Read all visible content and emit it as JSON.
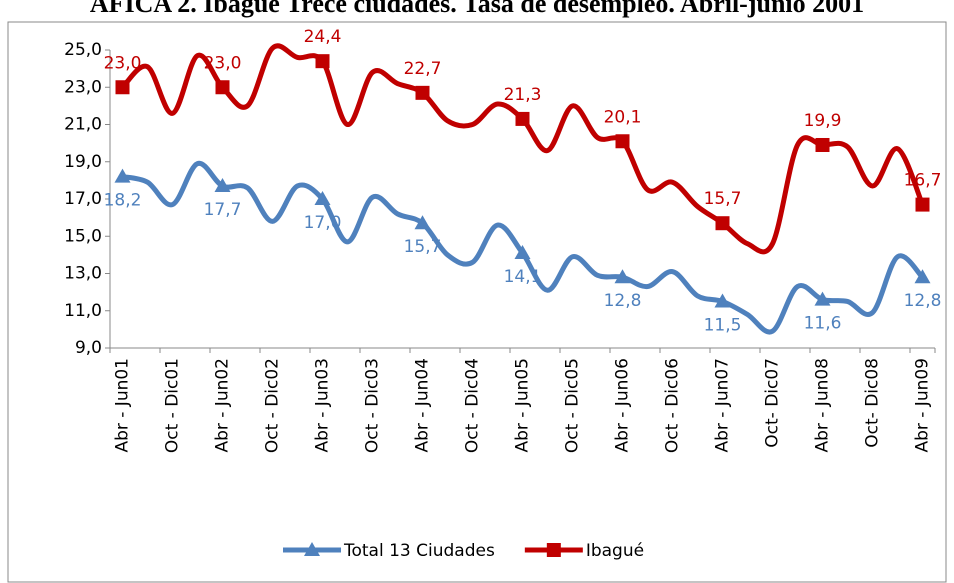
{
  "chart_data": {
    "type": "line",
    "title": "AFICA 2. Ibagué Trece ciudades. Tasa de desempleo. Abril-junio 2001",
    "categories": [
      "Abr - Jun01",
      null,
      "Oct - Dic01",
      null,
      "Abr - Jun02",
      null,
      "Oct - Dic02",
      null,
      "Abr - Jun03",
      null,
      "Oct - Dic03",
      null,
      "Abr - Jun04",
      null,
      "Oct - Dic04",
      null,
      "Abr - Jun05",
      null,
      "Oct - Dic05",
      null,
      "Abr - Jun06",
      null,
      "Oct - Dic06",
      null,
      "Abr - Jun07",
      null,
      "Oct- Dic07",
      null,
      "Abr - Jun08",
      null,
      "Oct- Dic08",
      null,
      "Abr - Jun09"
    ],
    "series": [
      {
        "name": "Total 13 Ciudades",
        "color": "#4f81bd",
        "marker": "triangle",
        "values": [
          18.2,
          17.9,
          16.7,
          18.9,
          17.7,
          17.6,
          15.8,
          17.7,
          17.0,
          14.7,
          17.1,
          16.2,
          15.7,
          14.0,
          13.6,
          15.6,
          14.1,
          12.1,
          13.9,
          12.9,
          12.8,
          12.3,
          13.1,
          11.8,
          11.5,
          10.8,
          9.9,
          12.3,
          11.6,
          11.5,
          10.9,
          13.9,
          12.8
        ],
        "value_labels": [
          "18,2",
          null,
          null,
          null,
          "17,7",
          null,
          null,
          null,
          "17,0",
          null,
          null,
          null,
          "15,7",
          null,
          null,
          null,
          "14,1",
          null,
          null,
          null,
          "12,8",
          null,
          null,
          null,
          "11,5",
          null,
          null,
          null,
          "11,6",
          null,
          null,
          null,
          "12,8"
        ]
      },
      {
        "name": "Ibagué",
        "color": "#c00000",
        "marker": "square",
        "values": [
          23.0,
          24.1,
          21.6,
          24.7,
          23.0,
          22.0,
          25.1,
          24.6,
          24.4,
          21.0,
          23.8,
          23.2,
          22.7,
          21.2,
          21.0,
          22.1,
          21.3,
          19.6,
          22.0,
          20.3,
          20.1,
          17.5,
          17.9,
          16.6,
          15.7,
          14.6,
          14.6,
          19.9,
          19.9,
          19.8,
          17.7,
          19.7,
          16.7
        ],
        "value_labels": [
          "23,0",
          null,
          null,
          null,
          "23,0",
          null,
          null,
          null,
          "24,4",
          null,
          null,
          null,
          "22,7",
          null,
          null,
          null,
          "21,3",
          null,
          null,
          null,
          "20,1",
          null,
          null,
          null,
          "15,7",
          null,
          null,
          null,
          "19,9",
          null,
          null,
          null,
          "16,7"
        ]
      }
    ],
    "ylim": [
      9,
      25
    ],
    "yticks": [
      {
        "value": 9,
        "label": "9,0"
      },
      {
        "value": 11,
        "label": "11,0"
      },
      {
        "value": 13,
        "label": "13,0"
      },
      {
        "value": 15,
        "label": "15,0"
      },
      {
        "value": 17,
        "label": "17,0"
      },
      {
        "value": 19,
        "label": "19,0"
      },
      {
        "value": 21,
        "label": "21,0"
      },
      {
        "value": 23,
        "label": "23,0"
      },
      {
        "value": 25,
        "label": "25,0"
      }
    ],
    "grid": false,
    "legend": "bottom"
  }
}
